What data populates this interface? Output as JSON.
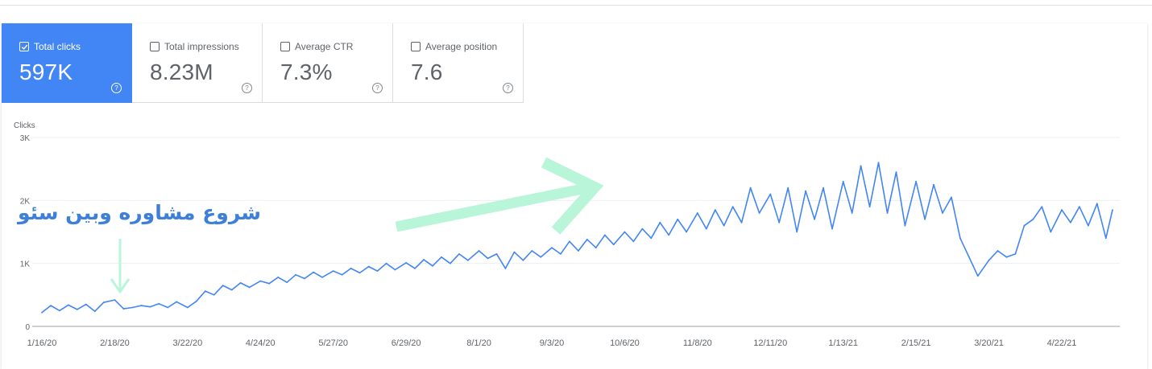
{
  "metrics": [
    {
      "label": "Total clicks",
      "value": "597K",
      "checked": true
    },
    {
      "label": "Total impressions",
      "value": "8.23M",
      "checked": false
    },
    {
      "label": "Average CTR",
      "value": "7.3%",
      "checked": false
    },
    {
      "label": "Average position",
      "value": "7.6",
      "checked": false
    }
  ],
  "help_glyph": "?",
  "annotation": "شروع مشاوره وبین سئو",
  "colors": {
    "accent": "#4285f4",
    "line": "#4285f4",
    "arrow": "#b9f5d8",
    "annotation": "#3d7fd9"
  },
  "chart_data": {
    "type": "line",
    "title": "",
    "ylabel": "Clicks",
    "xlabel": "",
    "ylim": [
      0,
      3000
    ],
    "yticks": [
      0,
      1000,
      2000,
      3000
    ],
    "ytick_labels": [
      "0",
      "1K",
      "2K",
      "3K"
    ],
    "xtick_labels": [
      "1/16/20",
      "2/18/20",
      "3/22/20",
      "4/24/20",
      "5/27/20",
      "6/29/20",
      "8/1/20",
      "9/3/20",
      "10/6/20",
      "11/8/20",
      "12/11/20",
      "1/13/21",
      "2/15/21",
      "3/20/21",
      "4/22/21"
    ],
    "grid": true,
    "series": [
      {
        "x": [
          "1/16/20",
          "1/20/20",
          "1/24/20",
          "1/28/20",
          "2/1/20",
          "2/5/20",
          "2/9/20",
          "2/13/20",
          "2/18/20",
          "2/22/20",
          "2/26/20",
          "3/1/20",
          "3/5/20",
          "3/9/20",
          "3/13/20",
          "3/17/20",
          "3/22/20",
          "3/26/20",
          "3/30/20",
          "4/3/20",
          "4/7/20",
          "4/11/20",
          "4/15/20",
          "4/19/20",
          "4/24/20",
          "4/28/20",
          "5/2/20",
          "5/6/20",
          "5/10/20",
          "5/14/20",
          "5/18/20",
          "5/22/20",
          "5/27/20",
          "5/31/20",
          "6/4/20",
          "6/8/20",
          "6/12/20",
          "6/16/20",
          "6/20/20",
          "6/24/20",
          "6/29/20",
          "7/3/20",
          "7/7/20",
          "7/11/20",
          "7/15/20",
          "7/19/20",
          "7/23/20",
          "7/27/20",
          "8/1/20",
          "8/5/20",
          "8/9/20",
          "8/13/20",
          "8/17/20",
          "8/21/20",
          "8/25/20",
          "8/29/20",
          "9/3/20",
          "9/7/20",
          "9/11/20",
          "9/15/20",
          "9/19/20",
          "9/23/20",
          "9/27/20",
          "10/1/20",
          "10/6/20",
          "10/10/20",
          "10/14/20",
          "10/18/20",
          "10/22/20",
          "10/26/20",
          "10/30/20",
          "11/3/20",
          "11/8/20",
          "11/12/20",
          "11/16/20",
          "11/20/20",
          "11/24/20",
          "11/28/20",
          "12/2/20",
          "12/6/20",
          "12/11/20",
          "12/15/20",
          "12/19/20",
          "12/23/20",
          "12/27/20",
          "12/31/20",
          "1/4/21",
          "1/8/21",
          "1/13/21",
          "1/17/21",
          "1/21/21",
          "1/25/21",
          "1/29/21",
          "2/2/21",
          "2/6/21",
          "2/10/21",
          "2/15/21",
          "2/19/21",
          "2/23/21",
          "2/27/21",
          "3/3/21",
          "3/7/21",
          "3/11/21",
          "3/15/21",
          "3/20/21",
          "3/24/21",
          "3/28/21",
          "4/1/21",
          "4/5/21",
          "4/9/21",
          "4/13/21",
          "4/17/21",
          "4/22/21",
          "4/26/21",
          "4/30/21",
          "5/4/21",
          "5/8/21",
          "5/12/21",
          "5/15/21"
        ],
        "values": [
          220,
          330,
          250,
          340,
          270,
          350,
          240,
          380,
          420,
          280,
          300,
          330,
          310,
          360,
          300,
          390,
          300,
          400,
          560,
          500,
          650,
          580,
          690,
          620,
          720,
          680,
          780,
          700,
          820,
          760,
          860,
          780,
          880,
          820,
          920,
          850,
          950,
          880,
          1000,
          900,
          1010,
          920,
          1060,
          960,
          1100,
          1000,
          1150,
          1050,
          1200,
          1080,
          1150,
          920,
          1180,
          1050,
          1200,
          1100,
          1250,
          1150,
          1350,
          1200,
          1380,
          1250,
          1450,
          1300,
          1500,
          1350,
          1550,
          1400,
          1650,
          1450,
          1700,
          1500,
          1800,
          1550,
          1850,
          1600,
          1900,
          1650,
          2200,
          1800,
          2100,
          1650,
          2200,
          1500,
          2150,
          1700,
          2200,
          1550,
          2300,
          1800,
          2550,
          1900,
          2600,
          1800,
          2450,
          1600,
          2300,
          1700,
          2250,
          1800,
          2050,
          1400,
          1100,
          800,
          1050,
          1200,
          1100,
          1150,
          1600,
          1700,
          1900,
          1500,
          1850,
          1650,
          1900,
          1600,
          1950,
          1400,
          1850
        ]
      }
    ]
  }
}
